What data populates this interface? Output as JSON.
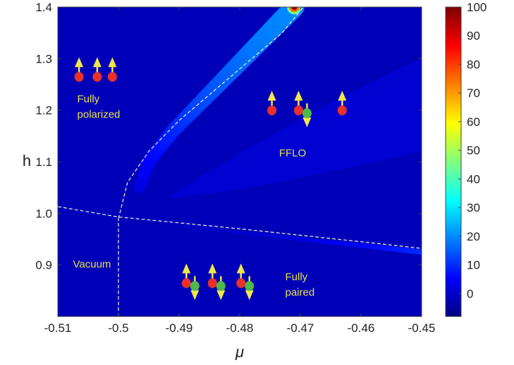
{
  "chart_data": {
    "type": "heatmap",
    "title": "",
    "xlabel": "μ",
    "ylabel": "h",
    "xlim": [
      -0.51,
      -0.45
    ],
    "ylim": [
      0.8,
      1.4
    ],
    "x_ticks": [
      -0.51,
      -0.5,
      -0.49,
      -0.48,
      -0.47,
      -0.46,
      -0.45
    ],
    "x_tick_labels": [
      "-0.51",
      "-0.5",
      "-0.49",
      "-0.48",
      "-0.47",
      "-0.46",
      "-0.45"
    ],
    "y_ticks": [
      0.9,
      1.0,
      1.1,
      1.2,
      1.3,
      1.4
    ],
    "y_tick_labels": [
      "0.9",
      "1.0",
      "1.1",
      "1.2",
      "1.3",
      "1.4"
    ],
    "colorbar": {
      "range": [
        -8,
        100
      ],
      "ticks": [
        0,
        10,
        20,
        30,
        40,
        50,
        60,
        70,
        80,
        90,
        100
      ],
      "tick_labels": [
        "0",
        "10",
        "20",
        "30",
        "40",
        "50",
        "60",
        "70",
        "80",
        "90",
        "100"
      ],
      "colormap": "jet"
    },
    "background_value": -2,
    "ridge": {
      "description_points": [
        {
          "mu": -0.4965,
          "h": 1.05,
          "value": 10
        },
        {
          "mu": -0.495,
          "h": 1.1,
          "value": 25
        },
        {
          "mu": -0.491,
          "h": 1.16,
          "value": 45
        },
        {
          "mu": -0.486,
          "h": 1.22,
          "value": 65
        },
        {
          "mu": -0.481,
          "h": 1.28,
          "value": 80
        },
        {
          "mu": -0.476,
          "h": 1.34,
          "value": 92
        },
        {
          "mu": -0.471,
          "h": 1.4,
          "value": 100
        }
      ]
    },
    "lower_band": {
      "from": {
        "mu": -0.49,
        "h": 0.975
      },
      "to": {
        "mu": -0.45,
        "h": 0.925
      },
      "value_at_end": 10
    },
    "boundary_lines": [
      {
        "name": "vertical",
        "points": [
          [
            -0.5,
            0.8
          ],
          [
            -0.5,
            0.99
          ]
        ]
      },
      {
        "name": "fflo-upper",
        "points": [
          [
            -0.5,
            0.99
          ],
          [
            -0.4985,
            1.06
          ],
          [
            -0.495,
            1.12
          ],
          [
            -0.49,
            1.18
          ],
          [
            -0.484,
            1.24
          ],
          [
            -0.478,
            1.3
          ],
          [
            -0.473,
            1.35
          ],
          [
            -0.4695,
            1.4
          ]
        ]
      },
      {
        "name": "fflo-lower",
        "points": [
          [
            -0.51,
            1.013
          ],
          [
            -0.5,
            0.993
          ],
          [
            -0.48,
            0.97
          ],
          [
            -0.46,
            0.945
          ],
          [
            -0.45,
            0.932
          ]
        ]
      }
    ],
    "region_labels": [
      {
        "lines": [
          "Fully",
          "polarized"
        ],
        "mu": -0.5068,
        "h": 1.215
      },
      {
        "lines": [
          "FFLO"
        ],
        "mu": -0.4735,
        "h": 1.11
      },
      {
        "lines": [
          "Vacuum"
        ],
        "mu": -0.5075,
        "h": 0.895
      },
      {
        "lines": [
          "Fully",
          "paired"
        ],
        "mu": -0.4725,
        "h": 0.87
      }
    ],
    "particle_groups": [
      {
        "name": "polarized",
        "h": 1.27,
        "mus": [
          -0.5065,
          -0.5035,
          -0.501
        ],
        "kind": "up"
      },
      {
        "name": "fflo-up-1",
        "h": 1.205,
        "mus": [
          -0.4747
        ],
        "kind": "up"
      },
      {
        "name": "fflo-pair",
        "h": 1.205,
        "mus": [
          -0.4703
        ],
        "kind": "pair"
      },
      {
        "name": "fflo-up-2",
        "h": 1.205,
        "mus": [
          -0.4631
        ],
        "kind": "up"
      },
      {
        "name": "paired",
        "h": 0.87,
        "mus": [
          -0.4888,
          -0.4845,
          -0.4798
        ],
        "kind": "pair"
      }
    ],
    "colors": {
      "particle_up": "#e8312a",
      "particle_down": "#4fb848",
      "arrow": "#f2e54a",
      "boundary": "#f0f0f0",
      "region_text": "#e8e24a"
    }
  }
}
